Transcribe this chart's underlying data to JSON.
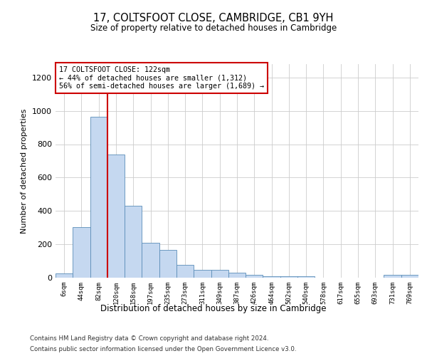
{
  "title1": "17, COLTSFOOT CLOSE, CAMBRIDGE, CB1 9YH",
  "title2": "Size of property relative to detached houses in Cambridge",
  "xlabel": "Distribution of detached houses by size in Cambridge",
  "ylabel": "Number of detached properties",
  "footer1": "Contains HM Land Registry data © Crown copyright and database right 2024.",
  "footer2": "Contains public sector information licensed under the Open Government Licence v3.0.",
  "annotation_line1": "17 COLTSFOOT CLOSE: 122sqm",
  "annotation_line2": "← 44% of detached houses are smaller (1,312)",
  "annotation_line3": "56% of semi-detached houses are larger (1,689) →",
  "bar_color": "#c5d8f0",
  "bar_edge_color": "#5b8db8",
  "property_line_color": "#cc0000",
  "categories": [
    "6sqm",
    "44sqm",
    "82sqm",
    "120sqm",
    "158sqm",
    "197sqm",
    "235sqm",
    "273sqm",
    "311sqm",
    "349sqm",
    "387sqm",
    "426sqm",
    "464sqm",
    "502sqm",
    "540sqm",
    "578sqm",
    "617sqm",
    "655sqm",
    "693sqm",
    "731sqm",
    "769sqm"
  ],
  "values": [
    25,
    305,
    965,
    740,
    430,
    210,
    165,
    75,
    48,
    48,
    30,
    18,
    10,
    10,
    10,
    0,
    0,
    0,
    0,
    15,
    15
  ],
  "ylim": [
    0,
    1280
  ],
  "yticks": [
    0,
    200,
    400,
    600,
    800,
    1000,
    1200
  ],
  "property_line_x": 2.5
}
